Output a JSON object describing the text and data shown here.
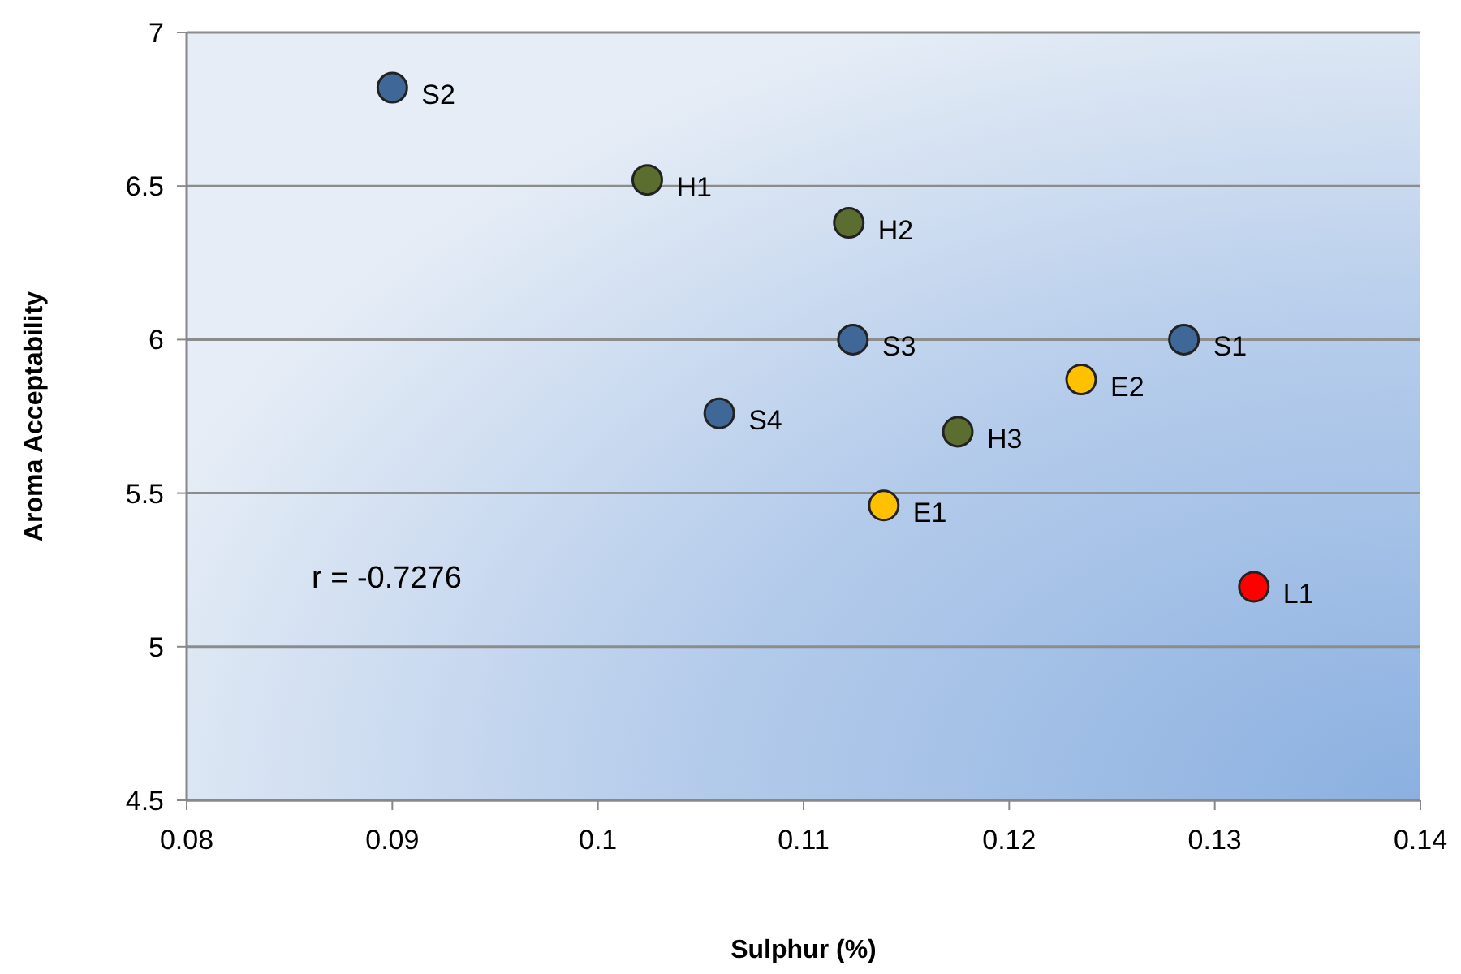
{
  "chart_data": {
    "type": "scatter",
    "xlabel": "Sulphur (%)",
    "ylabel": "Aroma Acceptability",
    "xlim": [
      0.08,
      0.14
    ],
    "xticks": [
      0.08,
      0.09,
      0.1,
      0.11,
      0.12,
      0.13,
      0.14
    ],
    "ylim": [
      4.5,
      7
    ],
    "yticks": [
      4.5,
      5,
      5.5,
      6,
      6.5,
      7
    ],
    "grid": "y",
    "marker": "circle",
    "annotations": [
      "r = -0.7276"
    ],
    "series": [
      {
        "color": "#3f6898",
        "x": [
          0.09,
          0.1124,
          0.1285,
          0.1059
        ],
        "values": [
          6.82,
          6.0,
          6.0,
          5.76
        ],
        "value_labels": [
          "S2",
          "S3",
          "S1",
          "S4"
        ]
      },
      {
        "color": "#5b6d2f",
        "x": [
          0.1024,
          0.1122,
          0.1175
        ],
        "values": [
          6.52,
          6.38,
          5.7
        ],
        "value_labels": [
          "H1",
          "H2",
          "H3"
        ]
      },
      {
        "color": "#ffc000",
        "x": [
          0.1235,
          0.1139
        ],
        "values": [
          5.87,
          5.46
        ],
        "value_labels": [
          "E2",
          "E1"
        ]
      },
      {
        "color": "#ff0000",
        "x": [
          0.1319
        ],
        "values": [
          5.195
        ],
        "value_labels": [
          "L1"
        ]
      }
    ]
  }
}
